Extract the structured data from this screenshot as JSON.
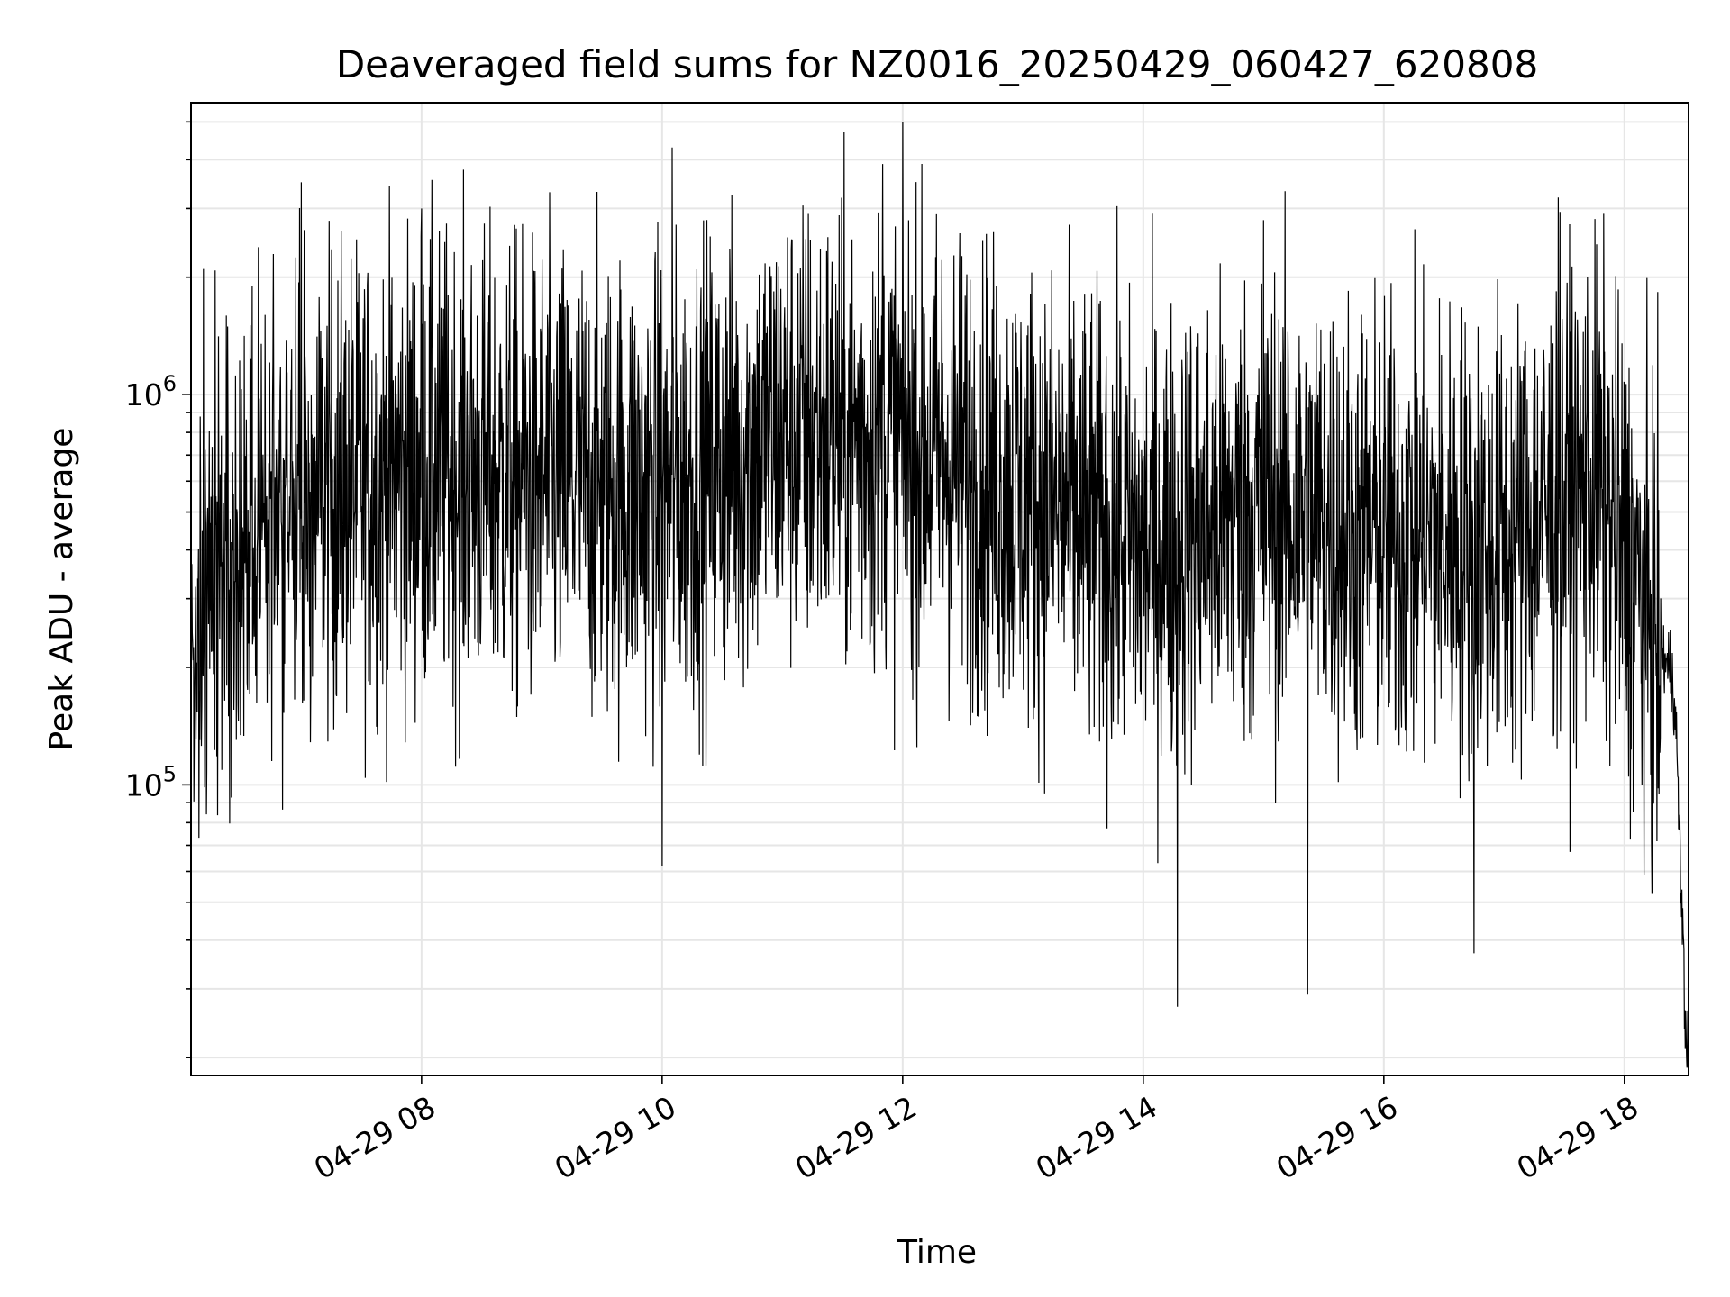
{
  "chart_data": {
    "type": "line",
    "title": "Deaveraged field sums for NZ0016_20250429_060427_620808",
    "xlabel": "Time",
    "ylabel": "Peak ADU - average",
    "x_scale": "time",
    "y_scale": "log",
    "xlim": [
      "2025-04-29 06:05",
      "2025-04-29 18:32"
    ],
    "ylim": [
      18000,
      5600000
    ],
    "x_ticks": [
      "04-29 08",
      "04-29 10",
      "04-29 12",
      "04-29 14",
      "04-29 16",
      "04-29 18"
    ],
    "y_ticks": [
      {
        "base": "10",
        "exp": "5",
        "value": 100000
      },
      {
        "base": "10",
        "exp": "6",
        "value": 1000000
      }
    ],
    "grid": true,
    "line_color": "#000000",
    "series": [
      {
        "values_by_hour": [
          {
            "t": "2025-04-29 06:05",
            "y": 300000
          },
          {
            "t": "2025-04-29 07:00",
            "y": 550000
          },
          {
            "t": "2025-04-29 08:00",
            "y": 650000
          },
          {
            "t": "2025-04-29 09:00",
            "y": 600000
          },
          {
            "t": "2025-04-29 10:00",
            "y": 560000
          },
          {
            "t": "2025-04-29 11:00",
            "y": 800000
          },
          {
            "t": "2025-04-29 12:00",
            "y": 760000
          },
          {
            "t": "2025-04-29 13:00",
            "y": 560000
          },
          {
            "t": "2025-04-29 14:00",
            "y": 400000
          },
          {
            "t": "2025-04-29 15:00",
            "y": 520000
          },
          {
            "t": "2025-04-29 16:00",
            "y": 430000
          },
          {
            "t": "2025-04-29 17:00",
            "y": 420000
          },
          {
            "t": "2025-04-29 17:45",
            "y": 600000
          },
          {
            "t": "2025-04-29 18:25",
            "y": 180000
          },
          {
            "t": "2025-04-29 18:31",
            "y": 20000
          }
        ],
        "peaks": [
          {
            "t": "2025-04-29 07:00",
            "y": 3500000
          },
          {
            "t": "2025-04-29 08:00",
            "y": 3000000
          },
          {
            "t": "2025-04-29 10:05",
            "y": 4300000
          },
          {
            "t": "2025-04-29 11:50",
            "y": 3900000
          },
          {
            "t": "2025-04-29 15:00",
            "y": 2800000
          },
          {
            "t": "2025-04-29 17:27",
            "y": 3200000
          }
        ],
        "troughs": [
          {
            "t": "2025-04-29 06:05",
            "y": 78000
          },
          {
            "t": "2025-04-29 10:00",
            "y": 62000
          },
          {
            "t": "2025-04-29 14:17",
            "y": 27000
          },
          {
            "t": "2025-04-29 15:22",
            "y": 29000
          },
          {
            "t": "2025-04-29 16:45",
            "y": 37000
          },
          {
            "t": "2025-04-29 18:31",
            "y": 20000
          }
        ]
      }
    ]
  }
}
